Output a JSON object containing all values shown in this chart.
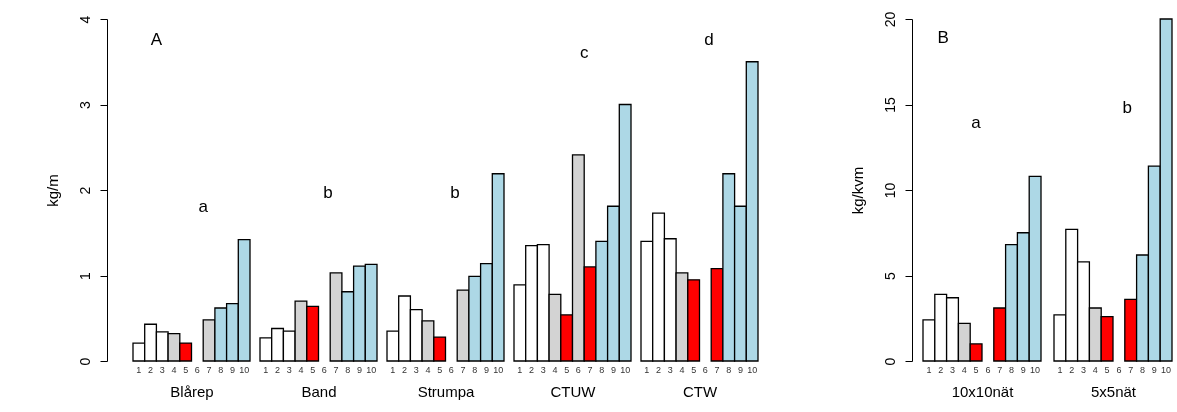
{
  "chart_data": [
    {
      "type": "bar",
      "categories": [
        "1",
        "2",
        "3",
        "4",
        "5",
        "6",
        "7",
        "8",
        "9",
        "10"
      ],
      "values": [
        0.21,
        0.43,
        0.34,
        0.32,
        0.21,
        null,
        0.48,
        0.62,
        0.67,
        1.42
      ],
      "colors": [
        "#ffffff",
        "#ffffff",
        "#ffffff",
        "#d3d3d3",
        "#ff0000",
        "#ffffff",
        "#d3d3d3",
        "#add8e6",
        "#add8e6",
        "#add8e6"
      ],
      "xlabel": "Blårep",
      "ylabel": "kg/m",
      "ylim": [
        0,
        4
      ],
      "yticks": [
        0,
        1,
        2,
        3,
        4
      ],
      "annotations": [
        "A",
        "a"
      ]
    },
    {
      "type": "bar",
      "categories": [
        "1",
        "2",
        "3",
        "4",
        "5",
        "6",
        "7",
        "8",
        "9",
        "10"
      ],
      "values": [
        0.27,
        0.38,
        0.35,
        0.7,
        0.64,
        null,
        1.03,
        0.81,
        1.11,
        1.13
      ],
      "colors": [
        "#ffffff",
        "#ffffff",
        "#ffffff",
        "#d3d3d3",
        "#ff0000",
        "#ffffff",
        "#d3d3d3",
        "#add8e6",
        "#add8e6",
        "#add8e6"
      ],
      "xlabel": "Band",
      "ylim": [
        0,
        4
      ],
      "tick_labels": "x",
      "annotations": [
        "b"
      ]
    },
    {
      "type": "bar",
      "categories": [
        "1",
        "2",
        "3",
        "4",
        "5",
        "6",
        "7",
        "8",
        "9",
        "10"
      ],
      "values": [
        0.35,
        0.76,
        0.6,
        0.47,
        0.28,
        null,
        0.83,
        0.99,
        1.14,
        2.19
      ],
      "colors": [
        "#ffffff",
        "#ffffff",
        "#ffffff",
        "#d3d3d3",
        "#ff0000",
        "#ffffff",
        "#d3d3d3",
        "#add8e6",
        "#add8e6",
        "#add8e6"
      ],
      "xlabel": "Strumpa",
      "ylim": [
        0,
        4
      ],
      "tick_labels": "x",
      "annotations": [
        "b"
      ]
    },
    {
      "type": "bar",
      "categories": [
        "1",
        "2",
        "3",
        "4",
        "5",
        "6",
        "7",
        "8",
        "9",
        "10"
      ],
      "values": [
        0.89,
        1.35,
        1.36,
        0.78,
        0.54,
        2.41,
        1.1,
        1.4,
        1.81,
        3.0
      ],
      "colors": [
        "#ffffff",
        "#ffffff",
        "#ffffff",
        "#d3d3d3",
        "#ff0000",
        "#d3d3d3",
        "#ff0000",
        "#add8e6",
        "#add8e6",
        "#add8e6"
      ],
      "xlabel": "CTUW",
      "ylim": [
        0,
        4
      ],
      "tick_labels": "x",
      "annotations": [
        "c"
      ]
    },
    {
      "type": "bar",
      "categories": [
        "1",
        "2",
        "3",
        "4",
        "5",
        "6",
        "7",
        "8",
        "9",
        "10"
      ],
      "values": [
        1.4,
        1.73,
        1.43,
        1.03,
        0.95,
        null,
        1.08,
        2.19,
        1.81,
        3.5
      ],
      "colors": [
        "#ffffff",
        "#ffffff",
        "#ffffff",
        "#d3d3d3",
        "#ff0000",
        "#ffffff",
        "#ff0000",
        "#add8e6",
        "#add8e6",
        "#add8e6"
      ],
      "xlabel": "CTW",
      "ylim": [
        0,
        4
      ],
      "tick_labels": "x",
      "annotations": [
        "d"
      ]
    },
    {
      "type": "bar",
      "categories": [
        "1",
        "2",
        "3",
        "4",
        "5",
        "6",
        "7",
        "8",
        "9",
        "10"
      ],
      "values": [
        2.4,
        3.9,
        3.7,
        2.2,
        1.0,
        null,
        3.1,
        6.8,
        7.5,
        10.8
      ],
      "colors": [
        "#ffffff",
        "#ffffff",
        "#ffffff",
        "#d3d3d3",
        "#ff0000",
        "#ffffff",
        "#ff0000",
        "#add8e6",
        "#add8e6",
        "#add8e6"
      ],
      "xlabel": "10x10nät",
      "ylabel": "kg/kvm",
      "ylim": [
        0,
        20
      ],
      "yticks": [
        0,
        5,
        10,
        15,
        20
      ],
      "annotations": [
        "B",
        "a"
      ]
    },
    {
      "type": "bar",
      "categories": [
        "1",
        "2",
        "3",
        "4",
        "5",
        "6",
        "7",
        "8",
        "9",
        "10"
      ],
      "values": [
        2.7,
        7.7,
        5.8,
        3.1,
        2.6,
        null,
        3.6,
        6.2,
        11.4,
        20.0
      ],
      "colors": [
        "#ffffff",
        "#ffffff",
        "#ffffff",
        "#d3d3d3",
        "#ff0000",
        "#ffffff",
        "#ff0000",
        "#add8e6",
        "#add8e6",
        "#add8e6"
      ],
      "xlabel": "5x5nät",
      "ylim": [
        0,
        20
      ],
      "tick_labels": "x",
      "annotations": [
        "b"
      ]
    }
  ]
}
